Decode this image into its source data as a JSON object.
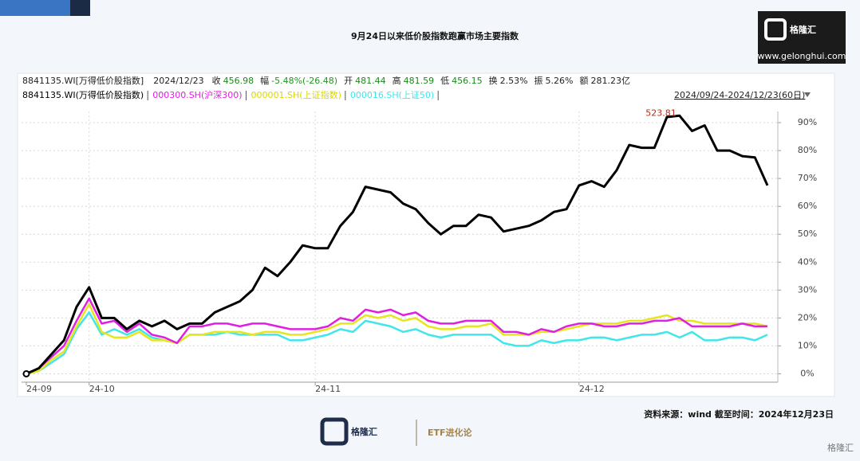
{
  "chart_data": {
    "type": "line",
    "title": "9月24日以来低价股指数跑赢市场主要指数",
    "logo": {
      "name": "格隆汇",
      "url": "www.gelonghui.com"
    },
    "info_bar": {
      "security": "8841135.WI[万得低价股指数]",
      "date": "2024/12/23",
      "items": [
        {
          "label": "收",
          "value": "456.98"
        },
        {
          "label": "幅",
          "value": "-5.48%(-26.48)"
        },
        {
          "label": "开",
          "value": "481.44"
        },
        {
          "label": "高",
          "value": "481.59"
        },
        {
          "label": "低",
          "value": "456.15"
        },
        {
          "label": "换",
          "value": "2.53%"
        },
        {
          "label": "振",
          "value": "5.26%"
        },
        {
          "label": "额",
          "value": "281.23亿"
        }
      ]
    },
    "range_label": "2024/09/24-2024/12/23(60日)",
    "annotation": "523.81",
    "source": "资料来源：wind  截至时间：2024年12月23日",
    "footer": {
      "brand": "格隆汇",
      "column": "ETF进化论",
      "watermark": "格隆汇"
    },
    "categories": [
      "24-09",
      null,
      null,
      null,
      null,
      "24-10",
      null,
      null,
      null,
      null,
      null,
      null,
      null,
      null,
      null,
      null,
      null,
      null,
      null,
      null,
      null,
      null,
      null,
      "24-11",
      null,
      null,
      null,
      null,
      null,
      null,
      null,
      null,
      null,
      null,
      null,
      null,
      null,
      null,
      null,
      null,
      null,
      null,
      null,
      null,
      "24-12",
      null,
      null,
      null,
      null,
      null,
      null,
      null,
      null,
      null,
      null,
      null,
      null,
      null,
      null,
      null
    ],
    "series": [
      {
        "name": "8841135.WI(万得低价股指数)",
        "color": "#000000",
        "values": [
          0,
          2,
          7,
          12,
          24,
          31,
          20,
          20,
          16,
          19,
          17,
          19,
          16,
          18,
          18,
          22,
          24,
          26,
          30,
          38,
          35,
          40,
          46,
          45,
          45,
          53,
          58,
          67,
          66,
          65,
          61,
          59,
          54,
          50,
          53,
          53,
          57,
          56,
          51,
          52,
          53,
          55,
          58,
          59,
          67.5,
          69,
          67,
          73,
          82,
          81,
          81,
          92,
          92.5,
          87,
          89,
          80,
          80,
          78,
          77.5,
          67.5
        ]
      },
      {
        "name": "000300.SH(沪深300)",
        "color": "#e020e0",
        "values": [
          0,
          2,
          6,
          10,
          19,
          27,
          18,
          19,
          15,
          18,
          14,
          13,
          11,
          17,
          17,
          18,
          18,
          17,
          18,
          18,
          17,
          16,
          16,
          16,
          17,
          20,
          19,
          23,
          22,
          23,
          21,
          22,
          19,
          18,
          18,
          19,
          19,
          19,
          15,
          15,
          14,
          16,
          15,
          17,
          18,
          18,
          17,
          17,
          18,
          18,
          19,
          19,
          20,
          17,
          17,
          17,
          17,
          18,
          17,
          17
        ]
      },
      {
        "name": "000001.SH(上证指数)",
        "color": "#e6e61e",
        "values": [
          0,
          1,
          5,
          8,
          17,
          25,
          15,
          13,
          13,
          15,
          12,
          12,
          11,
          14,
          14,
          15,
          15,
          15,
          14,
          15,
          15,
          14,
          14,
          15,
          16,
          18,
          18,
          21,
          20,
          21,
          19,
          20,
          17,
          16,
          16,
          17,
          17,
          18,
          14,
          14,
          14,
          15,
          15,
          16,
          17,
          18,
          18,
          18,
          19,
          19,
          20,
          21,
          19,
          19,
          18,
          18,
          18,
          18,
          18,
          17
        ]
      },
      {
        "name": "000016.SH(上证50)",
        "color": "#40e6ea",
        "values": [
          0,
          1,
          4,
          7,
          16,
          22,
          14,
          16,
          14,
          16,
          13,
          12,
          11,
          14,
          14,
          14,
          15,
          14,
          14,
          14,
          14,
          12,
          12,
          13,
          14,
          16,
          15,
          19,
          18,
          17,
          15,
          16,
          14,
          13,
          14,
          14,
          14,
          14,
          11,
          10,
          10,
          12,
          11,
          12,
          12,
          13,
          13,
          12,
          13,
          14,
          14,
          15,
          13,
          15,
          12,
          12,
          13,
          13,
          12,
          14
        ]
      }
    ],
    "ylim": [
      -3,
      94
    ],
    "yticks": [
      {
        "value": 0,
        "label": "0%"
      },
      {
        "value": 10,
        "label": "10%"
      },
      {
        "value": 20,
        "label": "20%"
      },
      {
        "value": 30,
        "label": "30%"
      },
      {
        "value": 40,
        "label": "40%"
      },
      {
        "value": 50,
        "label": "50%"
      },
      {
        "value": 60,
        "label": "60%"
      },
      {
        "value": 70,
        "label": "70%"
      },
      {
        "value": 80,
        "label": "80%"
      },
      {
        "value": 90,
        "label": "90%"
      }
    ],
    "grid": true
  }
}
